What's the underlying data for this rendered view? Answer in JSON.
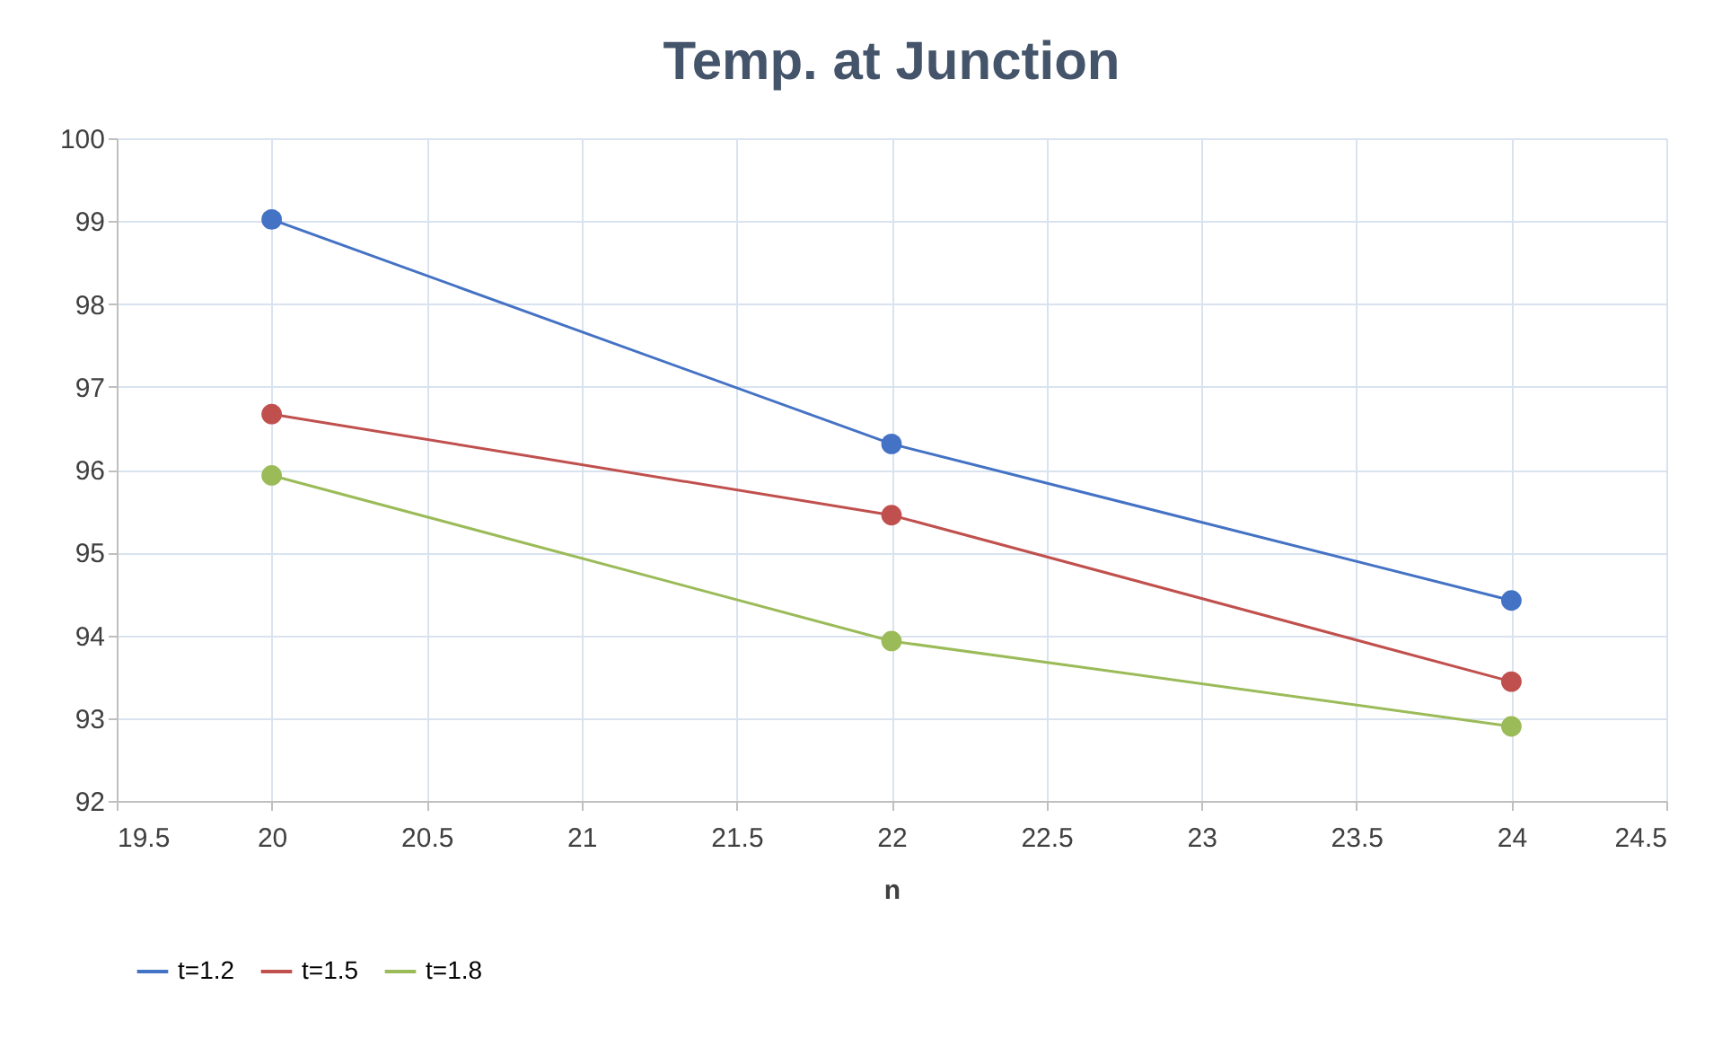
{
  "chart_data": {
    "type": "line",
    "title": "Temp. at Junction",
    "xlabel": "n",
    "x": [
      20,
      22,
      24
    ],
    "series": [
      {
        "name": "t=1.2",
        "color": "#4472c4",
        "values": [
          99.02,
          96.31,
          94.42
        ]
      },
      {
        "name": "t=1.5",
        "color": "#c0504d",
        "values": [
          96.67,
          95.45,
          93.44
        ]
      },
      {
        "name": "t=1.8",
        "color": "#9bbb59",
        "values": [
          95.93,
          93.93,
          92.9
        ]
      }
    ],
    "xlim": [
      19.5,
      24.5
    ],
    "xticks": [
      19.5,
      20,
      20.5,
      21,
      21.5,
      22,
      22.5,
      23,
      23.5,
      24,
      24.5
    ],
    "ylim": [
      92,
      100
    ],
    "yticks": [
      92,
      93,
      94,
      95,
      96,
      97,
      98,
      99,
      100
    ],
    "grid": true,
    "legend": "bottom",
    "marker": "circle",
    "line_style": "solid"
  }
}
